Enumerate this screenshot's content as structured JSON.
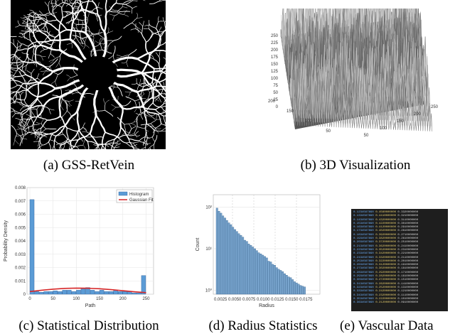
{
  "figure": {
    "panels": [
      {
        "id": "a",
        "caption": "(a) GSS-RetVein"
      },
      {
        "id": "b",
        "caption": "(b) 3D Visualization"
      },
      {
        "id": "c",
        "caption": "(c) Statistical Distribution"
      },
      {
        "id": "d",
        "caption": "(d) Radius Statistics"
      },
      {
        "id": "e",
        "caption": "(e) Vascular Data"
      }
    ]
  },
  "panel_b": {
    "z_ticks": [
      "250",
      "225",
      "200",
      "175",
      "150",
      "125",
      "100",
      "75",
      "50",
      "25",
      "0"
    ],
    "left_ticks": [
      "200",
      "150",
      "100",
      "50"
    ],
    "right_ticks": [
      "50",
      "100",
      "150",
      "200",
      "250"
    ]
  },
  "chart_data": [
    {
      "type": "bar",
      "panel": "c",
      "title": "",
      "xlabel": "Path",
      "ylabel": "Probability Density",
      "x_ticks": [
        "0",
        "50",
        "100",
        "150",
        "200",
        "250"
      ],
      "y_ticks": [
        "0",
        "0.001",
        "0.002",
        "0.003",
        "0.004",
        "0.005",
        "0.006",
        "0.007",
        "0.008"
      ],
      "xlim": [
        0,
        260
      ],
      "ylim": [
        0,
        0.008
      ],
      "legend": {
        "position": "top-right",
        "entries": [
          "Histogram",
          "Gaussian Fit"
        ]
      },
      "grid": true,
      "series": [
        {
          "name": "Histogram",
          "bins": [
            0,
            10,
            20,
            30,
            40,
            50,
            60,
            70,
            80,
            90,
            100,
            110,
            120,
            130,
            140,
            150,
            160,
            170,
            180,
            190,
            200,
            210,
            220,
            230,
            240,
            250
          ],
          "values": [
            0.0071,
            0.0002,
            0.00015,
            0.0002,
            0.0002,
            0.00025,
            0.0002,
            0.0003,
            0.0003,
            0.0002,
            0.0003,
            0.0004,
            0.0005,
            0.0003,
            0.0002,
            0.0003,
            0.0002,
            0.0002,
            0.0003,
            0.0002,
            0.0002,
            0.0002,
            0.0001,
            0.0001,
            0.0014
          ]
        },
        {
          "name": "Gaussian Fit",
          "x": [
            0,
            25,
            50,
            75,
            100,
            125,
            150,
            175,
            200,
            225,
            250
          ],
          "values": [
            0.0002,
            0.0003,
            0.00038,
            0.00044,
            0.00046,
            0.00045,
            0.00041,
            0.00034,
            0.00026,
            0.00018,
            0.00012
          ]
        }
      ]
    },
    {
      "type": "bar",
      "panel": "d",
      "title": "",
      "xlabel": "Radius",
      "ylabel": "Count",
      "yscale": "log",
      "y_ticks": [
        "10²",
        "10¹",
        "10⁰"
      ],
      "x_ticks": "0.0025 0.0050 0.0075 0.0100 0.0125 0.0150 0.0175",
      "grid": true,
      "values": [
        95,
        80,
        72,
        62,
        55,
        48,
        42,
        38,
        33,
        29,
        26,
        23,
        21,
        19,
        16,
        15,
        13,
        12,
        11,
        10,
        9,
        8,
        7.5,
        7,
        6.5,
        6,
        5,
        4.8,
        4.2,
        4,
        3.5,
        3.2,
        3,
        2.8,
        2.5,
        2.3,
        2.1,
        2,
        1.8,
        1.6,
        1.5,
        1.4,
        1.3,
        1.25,
        1.2
      ]
    }
  ],
  "panel_e": {
    "lines": [
      {
        "a": "0.1234567890",
        "b": "0.4560000000",
        "c": "0.3320000000"
      },
      {
        "a": "0.1334567890",
        "b": "0.4410000000",
        "c": "0.3210000000"
      },
      {
        "a": "0.1434567890",
        "b": "0.4320000000",
        "c": "0.3110000000"
      },
      {
        "a": "0.1534567890",
        "b": "0.4220000000",
        "c": "0.3010000000"
      },
      {
        "a": "0.1634567890",
        "b": "0.4120000000",
        "c": "0.2910000000"
      },
      {
        "a": "0.1734567890",
        "b": "0.4020000000",
        "c": "0.2810000000"
      },
      {
        "a": "0.1834567890",
        "b": "0.3920000000",
        "c": "0.2710000000"
      },
      {
        "a": "0.1934567890",
        "b": "0.3820000000",
        "c": "0.2610000000"
      },
      {
        "a": "0.2034567890",
        "b": "0.3720000000",
        "c": "0.2510000000"
      },
      {
        "a": "0.2134567890",
        "b": "0.3620000000",
        "c": "0.2410000000"
      },
      {
        "a": "0.2234567890",
        "b": "0.3520000000",
        "c": "0.2310000000"
      },
      {
        "a": "0.2334567890",
        "b": "0.3420000000",
        "c": "0.2210000000"
      },
      {
        "a": "0.2434567890",
        "b": "0.3320000000",
        "c": "0.2110000000"
      },
      {
        "a": "0.2534567890",
        "b": "0.3220000000",
        "c": "0.2010000000"
      },
      {
        "a": "0.2634567890",
        "b": "0.3120000000",
        "c": "0.1910000000"
      },
      {
        "a": "0.2734567890",
        "b": "0.3020000000",
        "c": "0.1810000000"
      },
      {
        "a": "0.2834567890",
        "b": "0.2920000000",
        "c": "0.1710000000"
      },
      {
        "a": "0.2934567890",
        "b": "0.2820000000",
        "c": "0.1610000000"
      },
      {
        "a": "0.3034567890",
        "b": "0.2720000000",
        "c": "0.1510000000"
      },
      {
        "a": "0.3134567890",
        "b": "0.2620000000",
        "c": "0.1410000000"
      },
      {
        "a": "0.3234567890",
        "b": "0.2520000000",
        "c": "0.1310000000"
      },
      {
        "a": "0.3334567890",
        "b": "0.2420000000",
        "c": "0.1210000000"
      },
      {
        "a": "0.3434567890",
        "b": "0.2320000000",
        "c": "0.1110000000"
      },
      {
        "a": "0.3534567890",
        "b": "0.2220000000",
        "c": "0.1010000000"
      },
      {
        "a": "0.3634567890",
        "b": "0.2120000000",
        "c": "0.0910000000"
      }
    ]
  }
}
